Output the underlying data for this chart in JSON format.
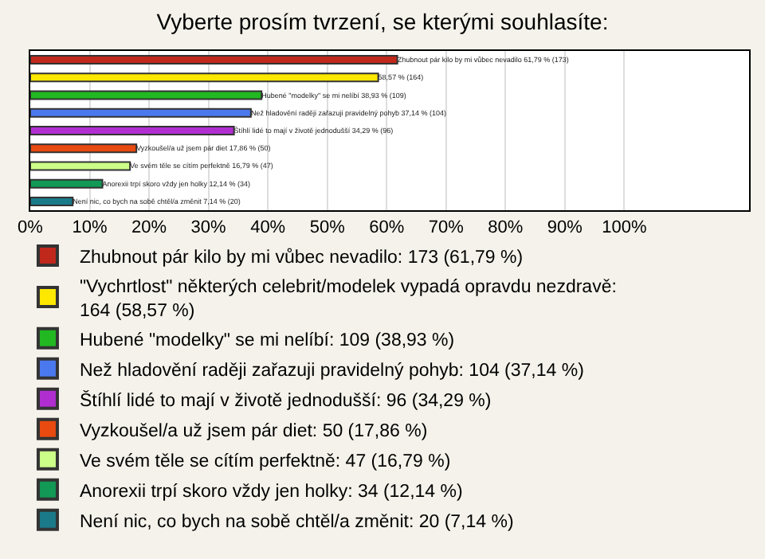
{
  "chart_data": {
    "type": "bar",
    "orientation": "horizontal",
    "title": "Vyberte prosím tvrzení, se kterými souhlasíte:",
    "categories": [
      null,
      null,
      null,
      null,
      null,
      null,
      null,
      null,
      null
    ],
    "xlim": [
      0,
      121
    ],
    "xticks": [
      {
        "value": 0,
        "label": "0%"
      },
      {
        "value": 10,
        "label": "10%"
      },
      {
        "value": 20,
        "label": "20%"
      },
      {
        "value": 30,
        "label": "30%"
      },
      {
        "value": 40,
        "label": "40%"
      },
      {
        "value": 50,
        "label": "50%"
      },
      {
        "value": 60,
        "label": "60%"
      },
      {
        "value": 70,
        "label": "70%"
      },
      {
        "value": 80,
        "label": "80%"
      },
      {
        "value": 90,
        "label": "90%"
      },
      {
        "value": 100,
        "label": "100%"
      }
    ],
    "tick_labels": "x",
    "grid": "x",
    "legend": "bottom",
    "series": [
      {
        "name": "Zhubnout pár kilo by mi vůbec nevadilo: 173 (61,79 %)",
        "color": "#c0281c",
        "values": [
          61.79,
          null,
          null,
          null,
          null,
          null,
          null,
          null,
          null
        ],
        "value_labels": [
          "Zhubnout pár kilo by mi vůbec nevadilo 61,79 % (173)",
          null,
          null,
          null,
          null,
          null,
          null,
          null,
          null
        ]
      },
      {
        "name": "\"Vychrtlost\" některých celebrit/modelek vypadá opravdu nezdravě: 164 (58,57 %)",
        "color": "#ffe800",
        "values": [
          null,
          58.57,
          null,
          null,
          null,
          null,
          null,
          null,
          null
        ],
        "value_labels": [
          null,
          "58,57 % (164)",
          null,
          null,
          null,
          null,
          null,
          null,
          null
        ]
      },
      {
        "name": "Hubené \"modelky\" se mi nelíbí: 109 (38,93 %)",
        "color": "#22b822",
        "values": [
          null,
          null,
          38.93,
          null,
          null,
          null,
          null,
          null,
          null
        ],
        "value_labels": [
          null,
          null,
          "Hubené \"modelky\" se mi nelíbí 38,93 % (109)",
          null,
          null,
          null,
          null,
          null,
          null
        ]
      },
      {
        "name": "Než hladovění raději zařazuji pravidelný pohyb: 104 (37,14 %)",
        "color": "#4a78ee",
        "values": [
          null,
          null,
          null,
          37.14,
          null,
          null,
          null,
          null,
          null
        ],
        "value_labels": [
          null,
          null,
          null,
          "Než hladovění raději zařazuji pravidelný pohyb 37,14 % (104)",
          null,
          null,
          null,
          null,
          null
        ]
      },
      {
        "name": "Štíhlí lidé to mají v životě jednodušší: 96 (34,29 %)",
        "color": "#b02ed0",
        "values": [
          null,
          null,
          null,
          null,
          34.29,
          null,
          null,
          null,
          null
        ],
        "value_labels": [
          null,
          null,
          null,
          null,
          "Štíhlí lidé to mají v životě jednodušší 34,29 % (96)",
          null,
          null,
          null,
          null
        ]
      },
      {
        "name": "Vyzkoušel/a už jsem pár diet: 50 (17,86 %)",
        "color": "#e84a10",
        "values": [
          null,
          null,
          null,
          null,
          null,
          17.86,
          null,
          null,
          null
        ],
        "value_labels": [
          null,
          null,
          null,
          null,
          null,
          "Vyzkoušel/a už jsem pár diet 17,86 % (50)",
          null,
          null,
          null
        ]
      },
      {
        "name": "Ve svém těle se cítím perfektně: 47 (16,79 %)",
        "color": "#ccff88",
        "values": [
          null,
          null,
          null,
          null,
          null,
          null,
          16.79,
          null,
          null
        ],
        "value_labels": [
          null,
          null,
          null,
          null,
          null,
          null,
          "Ve svém těle se cítím perfektně 16,79 % (47)",
          null,
          null
        ]
      },
      {
        "name": "Anorexii trpí skoro vždy jen holky: 34 (12,14 %)",
        "color": "#119955",
        "values": [
          null,
          null,
          null,
          null,
          null,
          null,
          null,
          12.14,
          null
        ],
        "value_labels": [
          null,
          null,
          null,
          null,
          null,
          null,
          null,
          "Anorexii trpí skoro vždy jen holky 12,14 % (34)",
          null
        ]
      },
      {
        "name": "Není nic, co bych na sobě chtěl/a změnit: 20 (7,14 %)",
        "color": "#1a7a8a",
        "values": [
          null,
          null,
          null,
          null,
          null,
          null,
          null,
          null,
          7.14
        ],
        "value_labels": [
          null,
          null,
          null,
          null,
          null,
          null,
          null,
          null,
          "Není nic, co bych na sobě chtěl/a změnit 7,14 % (20)"
        ]
      }
    ]
  }
}
